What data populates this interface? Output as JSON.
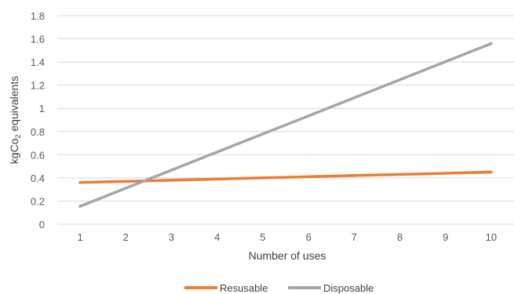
{
  "chart_data": {
    "type": "line",
    "title": "",
    "xlabel": "Number of uses",
    "ylabel_main": "kgCo",
    "ylabel_sub": "2",
    "ylabel_tail": " equivalents",
    "x": [
      1,
      2,
      3,
      4,
      5,
      6,
      7,
      8,
      9,
      10
    ],
    "xticks": [
      "1",
      "2",
      "3",
      "4",
      "5",
      "6",
      "7",
      "8",
      "9",
      "10"
    ],
    "ylim": [
      0,
      1.8
    ],
    "yticks": [
      "0",
      "0.2",
      "0.4",
      "0.6",
      "0.8",
      "1",
      "1.2",
      "1.4",
      "1.6",
      "1.8"
    ],
    "grid": true,
    "legend_position": "bottom",
    "series": [
      {
        "name": "Resusable",
        "color": "#ED7D31",
        "values": [
          0.36,
          0.37,
          0.38,
          0.39,
          0.4,
          0.41,
          0.42,
          0.43,
          0.44,
          0.45
        ]
      },
      {
        "name": "Disposable",
        "color": "#A5A5A5",
        "values": [
          0.155,
          0.311,
          0.467,
          0.623,
          0.779,
          0.935,
          1.091,
          1.247,
          1.403,
          1.559
        ]
      }
    ]
  }
}
